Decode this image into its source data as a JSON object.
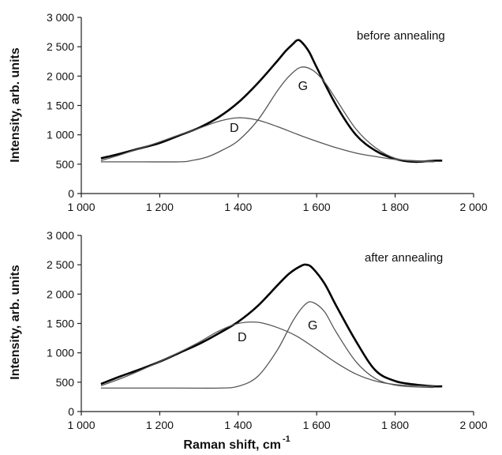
{
  "chart_data": [
    {
      "type": "line",
      "annotation": "before annealing",
      "ylabel": "Intensity, arb. units",
      "xlabel": "",
      "xlim": [
        1000,
        2000
      ],
      "ylim": [
        0,
        3000
      ],
      "x_ticks": [
        "1 000",
        "1 200",
        "1 400",
        "1 600",
        "1 800",
        "2 000"
      ],
      "y_ticks": [
        "0",
        "500",
        "1 000",
        "1 500",
        "2 000",
        "2 500",
        "3 000"
      ],
      "grid": false,
      "series": [
        {
          "name": "",
          "role": "measured spectrum",
          "x": [
            1050,
            1100,
            1150,
            1200,
            1250,
            1300,
            1350,
            1400,
            1450,
            1500,
            1520,
            1540,
            1550,
            1560,
            1580,
            1600,
            1650,
            1700,
            1750,
            1800,
            1850,
            1900,
            1920
          ],
          "y": [
            600,
            680,
            770,
            860,
            990,
            1120,
            1300,
            1550,
            1880,
            2260,
            2420,
            2550,
            2610,
            2590,
            2420,
            2150,
            1500,
            1000,
            730,
            590,
            540,
            560,
            560
          ]
        },
        {
          "name": "D",
          "role": "fitted band",
          "x": [
            1050,
            1100,
            1150,
            1200,
            1250,
            1300,
            1350,
            1400,
            1450,
            1500,
            1550,
            1600,
            1650,
            1700,
            1750,
            1800,
            1850,
            1900
          ],
          "y": [
            560,
            660,
            770,
            880,
            1000,
            1110,
            1230,
            1290,
            1250,
            1140,
            1010,
            890,
            780,
            690,
            630,
            580,
            560,
            550
          ]
        },
        {
          "name": "G",
          "role": "fitted band",
          "x": [
            1050,
            1150,
            1250,
            1280,
            1320,
            1360,
            1400,
            1450,
            1500,
            1530,
            1560,
            1590,
            1620,
            1650,
            1700,
            1750,
            1800,
            1850,
            1900
          ],
          "y": [
            540,
            540,
            540,
            560,
            620,
            740,
            900,
            1250,
            1750,
            2000,
            2150,
            2100,
            1900,
            1600,
            1100,
            780,
            600,
            550,
            540
          ]
        }
      ],
      "peak_labels": [
        {
          "text": "D",
          "x": 1390,
          "y": 1050
        },
        {
          "text": "G",
          "x": 1565,
          "y": 1760
        }
      ]
    },
    {
      "type": "line",
      "annotation": "after annealing",
      "ylabel": "Intensity, arb. units",
      "xlabel": "Raman shift, cm",
      "xlabel_superscript": "-1",
      "xlim": [
        1000,
        2000
      ],
      "ylim": [
        0,
        3000
      ],
      "x_ticks": [
        "1 000",
        "1 200",
        "1 400",
        "1 600",
        "1 800",
        "2 000"
      ],
      "y_ticks": [
        "0",
        "500",
        "1 000",
        "1 500",
        "2 000",
        "2 500",
        "3 000"
      ],
      "grid": false,
      "series": [
        {
          "name": "",
          "role": "measured spectrum",
          "x": [
            1050,
            1100,
            1150,
            1200,
            1250,
            1300,
            1350,
            1400,
            1450,
            1500,
            1530,
            1560,
            1575,
            1590,
            1620,
            1650,
            1700,
            1750,
            1800,
            1850,
            1900,
            1920
          ],
          "y": [
            470,
            600,
            720,
            850,
            1000,
            1150,
            1330,
            1530,
            1800,
            2150,
            2350,
            2480,
            2500,
            2440,
            2180,
            1800,
            1200,
            700,
            520,
            460,
            430,
            430
          ]
        },
        {
          "name": "D",
          "role": "fitted band",
          "x": [
            1050,
            1100,
            1150,
            1200,
            1250,
            1300,
            1350,
            1400,
            1450,
            1500,
            1550,
            1600,
            1650,
            1700,
            1750,
            1800,
            1850,
            1900
          ],
          "y": [
            440,
            560,
            700,
            850,
            1010,
            1180,
            1370,
            1500,
            1520,
            1430,
            1280,
            1060,
            830,
            640,
            520,
            460,
            440,
            430
          ]
        },
        {
          "name": "G",
          "role": "fitted band",
          "x": [
            1050,
            1150,
            1250,
            1350,
            1400,
            1450,
            1500,
            1540,
            1570,
            1590,
            1620,
            1650,
            1700,
            1750,
            1800,
            1850,
            1900
          ],
          "y": [
            400,
            400,
            400,
            400,
            430,
            600,
            1050,
            1550,
            1820,
            1860,
            1700,
            1350,
            850,
            560,
            450,
            420,
            410
          ]
        }
      ],
      "peak_labels": [
        {
          "text": "D",
          "x": 1410,
          "y": 1200
        },
        {
          "text": "G",
          "x": 1590,
          "y": 1400
        }
      ]
    }
  ]
}
